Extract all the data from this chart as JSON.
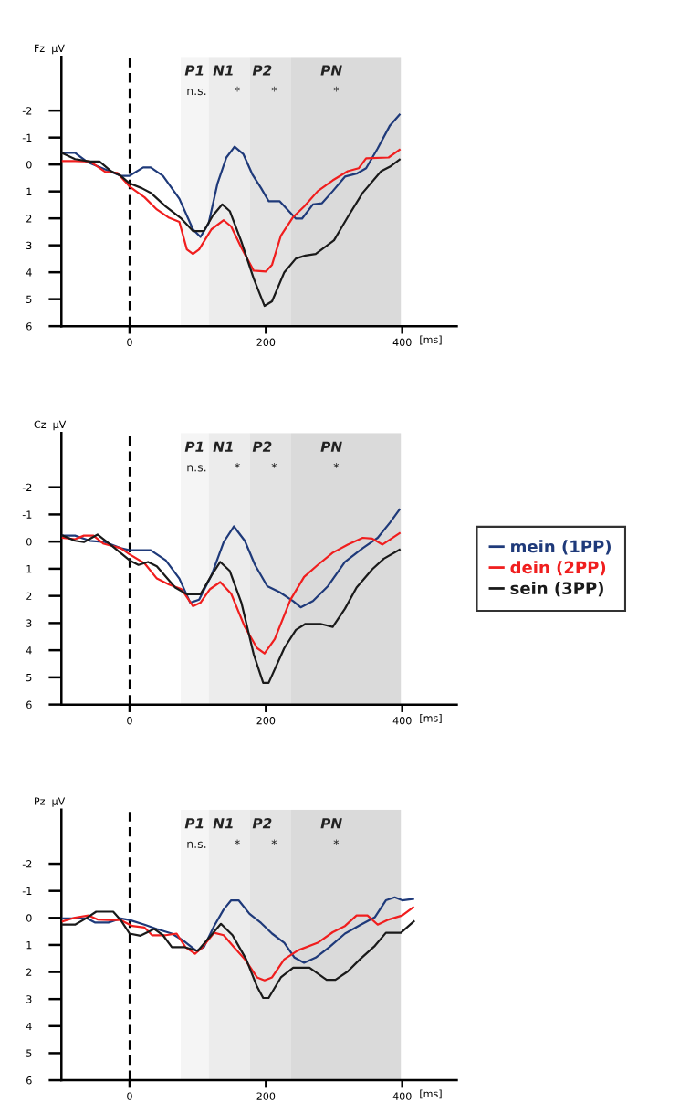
{
  "chart_data": [
    {
      "type": "line",
      "ylabel": "Fz  µV",
      "xlabel": "[ms]",
      "xlim": [
        -100,
        480
      ],
      "ylim": [
        6,
        -4
      ],
      "xticks": [
        0,
        200,
        400
      ],
      "yticks": [
        -2,
        -1,
        0,
        1,
        2,
        3,
        4,
        5,
        6
      ],
      "grid": false,
      "line_style": "solid",
      "marker": "none",
      "ref_lines": [
        {
          "axis": "x",
          "value": 0,
          "color": "#000000",
          "line_style": "dashed"
        }
      ],
      "bands": [
        {
          "axis": "x",
          "from": 75,
          "to": 116,
          "color": "#f5f5f5"
        },
        {
          "axis": "x",
          "from": 116,
          "to": 176,
          "color": "#ececec"
        },
        {
          "axis": "x",
          "from": 176,
          "to": 237,
          "color": "#e3e3e3"
        },
        {
          "axis": "x",
          "from": 237,
          "to": 398,
          "color": "#dadada"
        }
      ],
      "annotations": [
        "P1",
        "N1",
        "P2",
        "PN",
        "n.s.",
        "*",
        "*",
        "*"
      ],
      "series": [
        {
          "color": "#1f3a7a",
          "x": [
            -98,
            -80,
            -62,
            -40,
            -13,
            0,
            20,
            31,
            49,
            73,
            93,
            104,
            116,
            129,
            142,
            154,
            167,
            180,
            193,
            204,
            220,
            244,
            253,
            269,
            282,
            298,
            316,
            333,
            347,
            364,
            382,
            396
          ],
          "values": [
            -0.43,
            -0.43,
            -0.09,
            0.14,
            0.42,
            0.42,
            0.11,
            0.11,
            0.42,
            1.27,
            2.41,
            2.69,
            2.18,
            0.7,
            -0.26,
            -0.66,
            -0.38,
            0.36,
            0.88,
            1.36,
            1.36,
            2.01,
            2.01,
            1.48,
            1.44,
            0.99,
            0.45,
            0.34,
            0.14,
            -0.6,
            -1.45,
            -1.85
          ]
        },
        {
          "color": "#f01e1e",
          "x": [
            -98,
            -80,
            -58,
            -36,
            -18,
            0,
            22,
            40,
            58,
            73,
            84,
            93,
            102,
            120,
            138,
            149,
            164,
            182,
            200,
            209,
            222,
            240,
            256,
            276,
            298,
            320,
            336,
            347,
            380,
            396
          ],
          "values": [
            -0.13,
            -0.13,
            -0.11,
            0.27,
            0.31,
            0.82,
            1.22,
            1.67,
            1.98,
            2.13,
            3.15,
            3.32,
            3.15,
            2.41,
            2.07,
            2.3,
            3.09,
            3.94,
            3.97,
            3.72,
            2.64,
            1.95,
            1.56,
            0.99,
            0.59,
            0.25,
            0.14,
            -0.23,
            -0.26,
            -0.55
          ]
        },
        {
          "color": "#1a1a1a",
          "x": [
            -98,
            -80,
            -58,
            -44,
            -27,
            -13,
            0,
            18,
            31,
            53,
            76,
            93,
            109,
            122,
            136,
            147,
            164,
            182,
            198,
            209,
            227,
            244,
            258,
            273,
            300,
            320,
            342,
            369,
            382,
            396
          ],
          "values": [
            -0.41,
            -0.2,
            -0.11,
            -0.11,
            0.25,
            0.42,
            0.7,
            0.88,
            1.05,
            1.56,
            2.01,
            2.47,
            2.47,
            1.9,
            1.48,
            1.73,
            2.86,
            4.23,
            5.25,
            5.08,
            4.0,
            3.49,
            3.38,
            3.32,
            2.81,
            1.95,
            1.05,
            0.25,
            0.08,
            -0.18
          ]
        }
      ]
    },
    {
      "type": "line",
      "ylabel": "Cz  µV",
      "xlabel": "[ms]",
      "xlim": [
        -100,
        480
      ],
      "ylim": [
        6,
        -4
      ],
      "xticks": [
        0,
        200,
        400
      ],
      "yticks": [
        -2,
        -1,
        0,
        1,
        2,
        3,
        4,
        5,
        6
      ],
      "grid": false,
      "legend": "right",
      "line_style": "solid",
      "marker": "none",
      "ref_lines": [
        {
          "axis": "x",
          "value": 0,
          "color": "#000000",
          "line_style": "dashed"
        }
      ],
      "bands": [
        {
          "axis": "x",
          "from": 75,
          "to": 116,
          "color": "#f5f5f5"
        },
        {
          "axis": "x",
          "from": 116,
          "to": 176,
          "color": "#ececec"
        },
        {
          "axis": "x",
          "from": 176,
          "to": 237,
          "color": "#e3e3e3"
        },
        {
          "axis": "x",
          "from": 237,
          "to": 398,
          "color": "#dadada"
        }
      ],
      "annotations": [
        "P1",
        "N1",
        "P2",
        "PN",
        "n.s.",
        "*",
        "*",
        "*"
      ],
      "series": [
        {
          "name": "mein (1PP)",
          "color": "#1f3a7a",
          "x": [
            -98,
            -80,
            -58,
            -36,
            -13,
            0,
            31,
            53,
            73,
            89,
            102,
            120,
            138,
            153,
            169,
            184,
            202,
            220,
            240,
            251,
            269,
            291,
            316,
            342,
            364,
            382,
            396
          ],
          "values": [
            -0.22,
            -0.22,
            -0.03,
            0.02,
            0.24,
            0.32,
            0.32,
            0.69,
            1.36,
            2.25,
            2.14,
            1.25,
            0.02,
            -0.56,
            -0.03,
            0.86,
            1.64,
            1.86,
            2.19,
            2.42,
            2.19,
            1.64,
            0.75,
            0.24,
            -0.14,
            -0.7,
            -1.18
          ]
        },
        {
          "name": "dein (2PP)",
          "color": "#f01e1e",
          "x": [
            -98,
            -80,
            -67,
            -53,
            -38,
            -13,
            0,
            22,
            40,
            58,
            76,
            93,
            104,
            118,
            133,
            149,
            169,
            187,
            198,
            213,
            236,
            256,
            276,
            298,
            320,
            342,
            356,
            371,
            396
          ],
          "values": [
            -0.14,
            -0.09,
            -0.22,
            -0.22,
            0.08,
            0.24,
            0.47,
            0.8,
            1.36,
            1.58,
            1.75,
            2.38,
            2.25,
            1.75,
            1.49,
            1.92,
            3.14,
            3.92,
            4.12,
            3.59,
            2.14,
            1.3,
            0.86,
            0.41,
            0.11,
            -0.14,
            -0.11,
            0.11,
            -0.31
          ]
        },
        {
          "name": "sein (3PP)",
          "color": "#1a1a1a",
          "x": [
            -98,
            -80,
            -67,
            -47,
            -27,
            0,
            13,
            27,
            40,
            67,
            84,
            104,
            120,
            133,
            147,
            164,
            182,
            196,
            204,
            227,
            244,
            258,
            280,
            298,
            316,
            333,
            356,
            373,
            396
          ],
          "values": [
            -0.22,
            -0.03,
            0.02,
            -0.26,
            0.13,
            0.69,
            0.86,
            0.75,
            0.91,
            1.69,
            1.94,
            1.94,
            1.25,
            0.75,
            1.08,
            2.25,
            4.14,
            5.2,
            5.2,
            3.92,
            3.25,
            3.03,
            3.03,
            3.14,
            2.47,
            1.69,
            1.02,
            0.63,
            0.3
          ]
        }
      ]
    },
    {
      "type": "line",
      "ylabel": "Pz  µV",
      "xlabel": "[ms]",
      "xlim": [
        -100,
        480
      ],
      "ylim": [
        6,
        -4
      ],
      "xticks": [
        0,
        200,
        400
      ],
      "yticks": [
        -2,
        -1,
        0,
        1,
        2,
        3,
        4,
        5,
        6
      ],
      "grid": false,
      "line_style": "solid",
      "marker": "none",
      "ref_lines": [
        {
          "axis": "x",
          "value": 0,
          "color": "#000000",
          "line_style": "dashed"
        }
      ],
      "bands": [
        {
          "axis": "x",
          "from": 75,
          "to": 116,
          "color": "#f5f5f5"
        },
        {
          "axis": "x",
          "from": 116,
          "to": 176,
          "color": "#ececec"
        },
        {
          "axis": "x",
          "from": 176,
          "to": 237,
          "color": "#e3e3e3"
        },
        {
          "axis": "x",
          "from": 237,
          "to": 398,
          "color": "#dadada"
        }
      ],
      "annotations": [
        "P1",
        "N1",
        "P2",
        "PN",
        "n.s.",
        "*",
        "*",
        "*"
      ],
      "series": [
        {
          "color": "#1f3a7a",
          "x": [
            -98,
            -80,
            -62,
            -51,
            -31,
            -13,
            0,
            22,
            40,
            62,
            80,
            98,
            109,
            124,
            138,
            149,
            160,
            176,
            193,
            209,
            227,
            242,
            256,
            273,
            293,
            316,
            338,
            360,
            376,
            389,
            400,
            416
          ],
          "values": [
            0.02,
            0.02,
            0.02,
            0.17,
            0.17,
            0.02,
            0.08,
            0.25,
            0.41,
            0.58,
            0.86,
            1.22,
            1.08,
            0.3,
            -0.31,
            -0.65,
            -0.65,
            -0.15,
            0.19,
            0.58,
            0.92,
            1.47,
            1.66,
            1.47,
            1.08,
            0.58,
            0.27,
            -0.03,
            -0.65,
            -0.76,
            -0.65,
            -0.7
          ]
        },
        {
          "color": "#f01e1e",
          "x": [
            -98,
            -80,
            -60,
            -47,
            -31,
            -13,
            4,
            22,
            33,
            53,
            69,
            82,
            96,
            107,
            124,
            138,
            153,
            169,
            187,
            198,
            209,
            227,
            247,
            276,
            298,
            316,
            333,
            349,
            364,
            378,
            400,
            416
          ],
          "values": [
            0.13,
            -0.01,
            -0.09,
            0.06,
            0.08,
            0.08,
            0.3,
            0.36,
            0.64,
            0.64,
            0.58,
            1.08,
            1.33,
            1.08,
            0.55,
            0.64,
            1.08,
            1.53,
            2.2,
            2.31,
            2.2,
            1.53,
            1.2,
            0.92,
            0.53,
            0.3,
            -0.09,
            -0.09,
            0.25,
            0.08,
            -0.09,
            -0.39
          ]
        },
        {
          "color": "#1a1a1a",
          "x": [
            -98,
            -80,
            -64,
            -49,
            -24,
            -13,
            0,
            16,
            36,
            49,
            62,
            80,
            100,
            116,
            134,
            151,
            171,
            187,
            196,
            204,
            222,
            240,
            264,
            289,
            302,
            320,
            338,
            360,
            376,
            398,
            417
          ],
          "values": [
            0.25,
            0.25,
            0.02,
            -0.23,
            -0.23,
            0.08,
            0.58,
            0.66,
            0.41,
            0.64,
            1.08,
            1.08,
            1.22,
            0.75,
            0.22,
            0.64,
            1.53,
            2.54,
            2.96,
            2.96,
            2.2,
            1.84,
            1.84,
            2.29,
            2.29,
            1.98,
            1.53,
            1.03,
            0.55,
            0.55,
            0.13
          ]
        }
      ]
    }
  ]
}
